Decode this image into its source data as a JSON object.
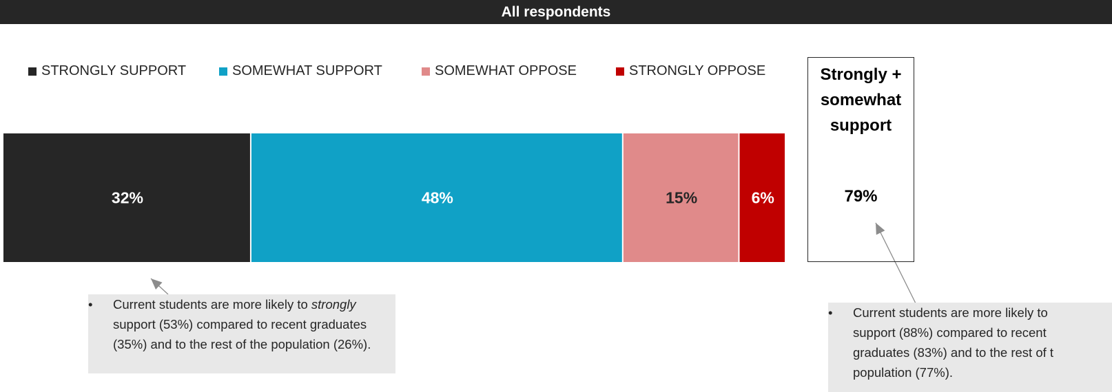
{
  "header": {
    "title": "All respondents"
  },
  "chart_data": {
    "type": "bar",
    "orientation": "horizontal-stacked",
    "categories": [
      "All respondents"
    ],
    "series": [
      {
        "name": "STRONGLY SUPPORT",
        "values": [
          32
        ],
        "label": "32%",
        "color": "#262626"
      },
      {
        "name": "SOMEWHAT SUPPORT",
        "values": [
          48
        ],
        "label": "48%",
        "color": "#10a1c6"
      },
      {
        "name": "SOMEWHAT OPPOSE",
        "values": [
          15
        ],
        "label": "15%",
        "color": "#e08a8a"
      },
      {
        "name": "STRONGLY OPPOSE",
        "values": [
          6
        ],
        "label": "6%",
        "color": "#c00000"
      }
    ],
    "xlim": [
      0,
      101
    ],
    "legend_position": "top-left",
    "grid": false
  },
  "summary": {
    "title_lines": [
      "Strongly +",
      "somewhat",
      "support"
    ],
    "value": "79%"
  },
  "callouts": {
    "left": {
      "bullet": "•",
      "before": "Current students are more likely to ",
      "emphasis": "strongly",
      "after": " support (53%) compared to recent graduates (35%) and to the rest of the population (26%)."
    },
    "right": {
      "bullet": "•",
      "lines": [
        "Current students are more likely to",
        "support (88%) compared to recent",
        "graduates (83%) and to the rest of t",
        "population (77%)."
      ]
    }
  }
}
